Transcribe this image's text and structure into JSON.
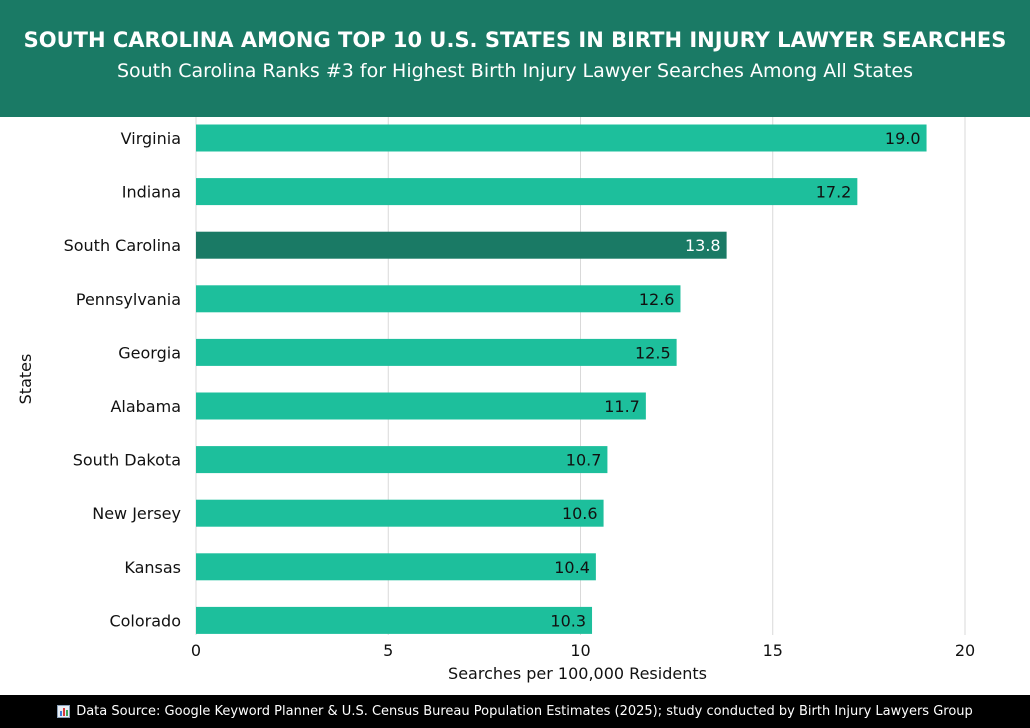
{
  "header": {
    "title": "SOUTH CAROLINA AMONG TOP 10 U.S. STATES IN BIRTH INJURY LAWYER SEARCHES",
    "subtitle": "South Carolina Ranks #3 for Highest Birth Injury Lawyer Searches Among All States"
  },
  "colors": {
    "header_bg": "#1a7a65",
    "bar": "#1dbf9c",
    "bar_highlight": "#1a7a65",
    "footer_bg": "#000000"
  },
  "chart_data": {
    "type": "bar",
    "orientation": "horizontal",
    "categories": [
      "Virginia",
      "Indiana",
      "South Carolina",
      "Pennsylvania",
      "Georgia",
      "Alabama",
      "South Dakota",
      "New Jersey",
      "Kansas",
      "Colorado"
    ],
    "values": [
      19.0,
      17.2,
      13.8,
      12.6,
      12.5,
      11.7,
      10.7,
      10.6,
      10.4,
      10.3
    ],
    "value_labels": [
      "19.0",
      "17.2",
      "13.8",
      "12.6",
      "12.5",
      "11.7",
      "10.7",
      "10.6",
      "10.4",
      "10.3"
    ],
    "highlight": "South Carolina",
    "xlabel": "Searches per 100,000 Residents",
    "ylabel": "States",
    "xlim": [
      0,
      20
    ],
    "xticks": [
      0,
      5,
      10,
      15,
      20
    ],
    "grid": true
  },
  "footer": {
    "icon": "bar-chart-icon",
    "text": "Data Source: Google Keyword Planner & U.S. Census Bureau Population Estimates (2025); study conducted by Birth Injury Lawyers Group"
  }
}
